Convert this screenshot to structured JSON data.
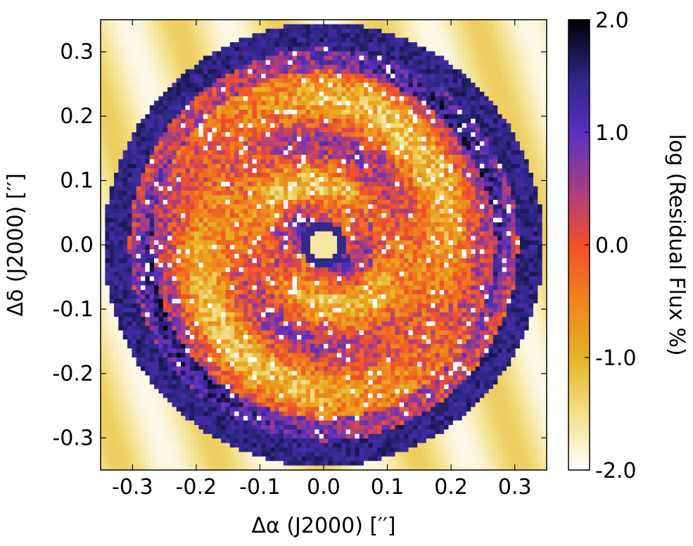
{
  "chart_data": {
    "type": "heatmap",
    "title": "",
    "xlabel": "Δα (J2000) [′′]",
    "ylabel": "Δδ (J2000) [′′]",
    "colorbar_label": "log (Residual Flux %)",
    "xlim": [
      -0.35,
      0.35
    ],
    "ylim": [
      -0.35,
      0.35
    ],
    "x_ticks": [
      -0.3,
      -0.2,
      -0.1,
      0.0,
      0.1,
      0.2,
      0.3
    ],
    "y_ticks": [
      0.3,
      0.2,
      0.1,
      0.0,
      -0.1,
      -0.2,
      -0.3
    ],
    "x_tick_labels": [
      "-0.3",
      "-0.2",
      "-0.1",
      "0.0",
      "0.1",
      "0.2",
      "0.3"
    ],
    "y_tick_labels": [
      "0.3",
      "0.2",
      "0.1",
      "0.0",
      "-0.1",
      "-0.2",
      "-0.3"
    ],
    "colorbar_range": [
      -2.0,
      2.0
    ],
    "colorbar_ticks": [
      2.0,
      1.0,
      0.0,
      -1.0,
      -2.0
    ],
    "colorbar_tick_labels": [
      "2.0",
      "1.0",
      "0.0",
      "-1.0",
      "-2.0"
    ],
    "colormap": "CMRmap-like",
    "colormap_stops": [
      {
        "value": -2.0,
        "color": "#ffffff"
      },
      {
        "value": -1.5,
        "color": "#f3e08a"
      },
      {
        "value": -1.0,
        "color": "#e6b224"
      },
      {
        "value": -0.5,
        "color": "#f0841c"
      },
      {
        "value": 0.0,
        "color": "#f0502a"
      },
      {
        "value": 0.5,
        "color": "#a63d86"
      },
      {
        "value": 1.0,
        "color": "#5a30c0"
      },
      {
        "value": 1.5,
        "color": "#2b2580"
      },
      {
        "value": 2.0,
        "color": "#000000"
      }
    ],
    "grid": false
  }
}
